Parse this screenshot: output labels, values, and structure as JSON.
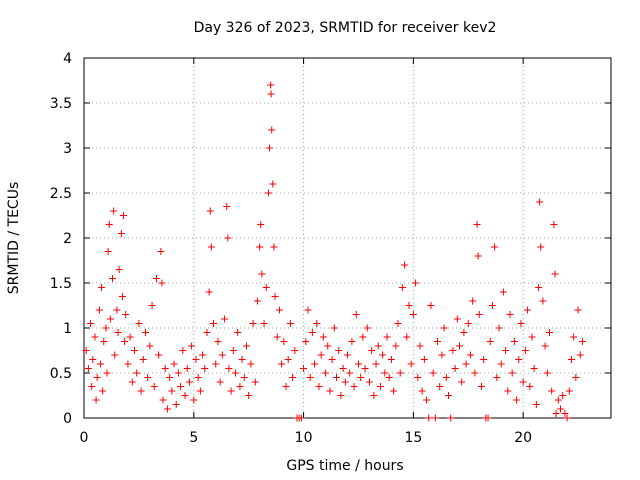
{
  "chart_data": {
    "type": "scatter",
    "title": "Day 326 of 2023, SRMTID for receiver kev2",
    "xlabel": "GPS time / hours",
    "ylabel": "SRMTID / TECUs",
    "xlim": [
      0,
      24
    ],
    "ylim": [
      0,
      4
    ],
    "x_ticks": [
      0,
      5,
      10,
      15,
      20
    ],
    "x_tick_labels": [
      "0",
      "5",
      "10",
      "15",
      "20"
    ],
    "y_ticks": [
      0,
      0.5,
      1,
      1.5,
      2,
      2.5,
      3,
      3.5,
      4
    ],
    "y_tick_labels": [
      "0",
      "0.5",
      "1",
      "1.5",
      "2",
      "2.5",
      "3",
      "3.5",
      "4"
    ],
    "grid": true,
    "marker": "+",
    "color": "#ff0000",
    "series": [
      {
        "name": "SRMTID",
        "points": [
          [
            0.1,
            0.75
          ],
          [
            0.2,
            0.55
          ],
          [
            0.3,
            1.05
          ],
          [
            0.35,
            0.35
          ],
          [
            0.4,
            0.65
          ],
          [
            0.5,
            0.9
          ],
          [
            0.55,
            0.2
          ],
          [
            0.6,
            0.45
          ],
          [
            0.7,
            1.2
          ],
          [
            0.75,
            0.6
          ],
          [
            0.8,
            1.45
          ],
          [
            0.85,
            0.3
          ],
          [
            0.9,
            0.85
          ],
          [
            1.0,
            1.0
          ],
          [
            1.05,
            0.5
          ],
          [
            1.1,
            1.85
          ],
          [
            1.15,
            2.15
          ],
          [
            1.2,
            1.1
          ],
          [
            1.3,
            1.55
          ],
          [
            1.35,
            2.3
          ],
          [
            1.4,
            0.7
          ],
          [
            1.5,
            1.2
          ],
          [
            1.55,
            0.95
          ],
          [
            1.6,
            1.65
          ],
          [
            1.7,
            2.05
          ],
          [
            1.75,
            1.35
          ],
          [
            1.8,
            2.25
          ],
          [
            1.85,
            0.85
          ],
          [
            1.9,
            1.15
          ],
          [
            2.0,
            0.6
          ],
          [
            2.1,
            0.9
          ],
          [
            2.2,
            0.4
          ],
          [
            2.3,
            0.75
          ],
          [
            2.4,
            0.5
          ],
          [
            2.5,
            1.05
          ],
          [
            2.6,
            0.3
          ],
          [
            2.7,
            0.65
          ],
          [
            2.8,
            0.95
          ],
          [
            2.9,
            0.45
          ],
          [
            3.0,
            0.8
          ],
          [
            3.1,
            1.25
          ],
          [
            3.2,
            0.35
          ],
          [
            3.3,
            1.55
          ],
          [
            3.4,
            0.7
          ],
          [
            3.5,
            1.85
          ],
          [
            3.55,
            1.5
          ],
          [
            3.6,
            0.2
          ],
          [
            3.7,
            0.55
          ],
          [
            3.8,
            0.1
          ],
          [
            3.9,
            0.45
          ],
          [
            4.0,
            0.3
          ],
          [
            4.1,
            0.6
          ],
          [
            4.2,
            0.15
          ],
          [
            4.3,
            0.5
          ],
          [
            4.4,
            0.35
          ],
          [
            4.5,
            0.75
          ],
          [
            4.6,
            0.25
          ],
          [
            4.7,
            0.55
          ],
          [
            4.8,
            0.4
          ],
          [
            4.9,
            0.8
          ],
          [
            5.0,
            0.2
          ],
          [
            5.1,
            0.65
          ],
          [
            5.2,
            0.45
          ],
          [
            5.3,
            0.3
          ],
          [
            5.4,
            0.7
          ],
          [
            5.5,
            0.55
          ],
          [
            5.6,
            0.95
          ],
          [
            5.7,
            1.4
          ],
          [
            5.75,
            2.3
          ],
          [
            5.8,
            1.9
          ],
          [
            5.9,
            1.05
          ],
          [
            6.0,
            0.6
          ],
          [
            6.1,
            0.85
          ],
          [
            6.2,
            0.4
          ],
          [
            6.3,
            0.7
          ],
          [
            6.4,
            1.1
          ],
          [
            6.5,
            2.35
          ],
          [
            6.55,
            2.0
          ],
          [
            6.6,
            0.55
          ],
          [
            6.7,
            0.3
          ],
          [
            6.8,
            0.75
          ],
          [
            6.9,
            0.5
          ],
          [
            7.0,
            0.95
          ],
          [
            7.1,
            0.35
          ],
          [
            7.2,
            0.65
          ],
          [
            7.3,
            0.45
          ],
          [
            7.4,
            0.8
          ],
          [
            7.5,
            0.25
          ],
          [
            7.6,
            0.6
          ],
          [
            7.7,
            1.05
          ],
          [
            7.8,
            0.4
          ],
          [
            7.9,
            1.3
          ],
          [
            8.0,
            1.9
          ],
          [
            8.05,
            2.15
          ],
          [
            8.1,
            1.6
          ],
          [
            8.2,
            1.05
          ],
          [
            8.3,
            1.45
          ],
          [
            8.4,
            2.5
          ],
          [
            8.45,
            3.0
          ],
          [
            8.5,
            3.7
          ],
          [
            8.52,
            3.6
          ],
          [
            8.55,
            3.2
          ],
          [
            8.6,
            2.6
          ],
          [
            8.65,
            1.9
          ],
          [
            8.7,
            1.35
          ],
          [
            8.8,
            0.9
          ],
          [
            8.9,
            1.2
          ],
          [
            9.0,
            0.6
          ],
          [
            9.1,
            0.85
          ],
          [
            9.2,
            0.35
          ],
          [
            9.3,
            0.65
          ],
          [
            9.4,
            1.05
          ],
          [
            9.5,
            0.45
          ],
          [
            9.6,
            0.75
          ],
          [
            9.7,
            0.0
          ],
          [
            9.8,
            0.0
          ],
          [
            9.9,
            0.0
          ],
          [
            10.0,
            0.55
          ],
          [
            10.1,
            0.85
          ],
          [
            10.2,
            1.2
          ],
          [
            10.3,
            0.45
          ],
          [
            10.4,
            0.95
          ],
          [
            10.5,
            0.6
          ],
          [
            10.6,
            1.05
          ],
          [
            10.7,
            0.35
          ],
          [
            10.8,
            0.7
          ],
          [
            10.9,
            0.9
          ],
          [
            11.0,
            0.5
          ],
          [
            11.1,
            0.8
          ],
          [
            11.2,
            0.3
          ],
          [
            11.3,
            0.65
          ],
          [
            11.4,
            1.0
          ],
          [
            11.5,
            0.45
          ],
          [
            11.6,
            0.75
          ],
          [
            11.7,
            0.25
          ],
          [
            11.8,
            0.55
          ],
          [
            11.9,
            0.4
          ],
          [
            12.0,
            0.7
          ],
          [
            12.1,
            0.5
          ],
          [
            12.2,
            0.85
          ],
          [
            12.3,
            0.35
          ],
          [
            12.4,
            1.15
          ],
          [
            12.5,
            0.6
          ],
          [
            12.6,
            0.45
          ],
          [
            12.7,
            0.9
          ],
          [
            12.8,
            0.55
          ],
          [
            12.9,
            1.0
          ],
          [
            13.0,
            0.4
          ],
          [
            13.1,
            0.75
          ],
          [
            13.2,
            0.25
          ],
          [
            13.3,
            0.6
          ],
          [
            13.4,
            0.8
          ],
          [
            13.5,
            0.35
          ],
          [
            13.6,
            0.7
          ],
          [
            13.7,
            0.5
          ],
          [
            13.8,
            0.9
          ],
          [
            13.9,
            0.45
          ],
          [
            14.0,
            0.65
          ],
          [
            14.1,
            0.3
          ],
          [
            14.2,
            0.8
          ],
          [
            14.3,
            1.05
          ],
          [
            14.4,
            0.5
          ],
          [
            14.5,
            1.45
          ],
          [
            14.6,
            1.7
          ],
          [
            14.7,
            0.9
          ],
          [
            14.8,
            1.25
          ],
          [
            14.9,
            0.6
          ],
          [
            15.0,
            1.15
          ],
          [
            15.1,
            1.5
          ],
          [
            15.2,
            0.45
          ],
          [
            15.3,
            0.8
          ],
          [
            15.4,
            0.3
          ],
          [
            15.5,
            0.65
          ],
          [
            15.6,
            0.2
          ],
          [
            15.7,
            0.0
          ],
          [
            15.8,
            1.25
          ],
          [
            15.9,
            0.5
          ],
          [
            16.0,
            0.0
          ],
          [
            16.1,
            0.85
          ],
          [
            16.2,
            0.35
          ],
          [
            16.3,
            0.7
          ],
          [
            16.4,
            1.0
          ],
          [
            16.5,
            0.45
          ],
          [
            16.6,
            0.25
          ],
          [
            16.7,
            0.0
          ],
          [
            16.8,
            0.75
          ],
          [
            16.9,
            0.55
          ],
          [
            17.0,
            1.1
          ],
          [
            17.1,
            0.8
          ],
          [
            17.2,
            0.4
          ],
          [
            17.3,
            0.95
          ],
          [
            17.4,
            0.6
          ],
          [
            17.5,
            1.05
          ],
          [
            17.6,
            0.7
          ],
          [
            17.7,
            1.3
          ],
          [
            17.8,
            0.5
          ],
          [
            17.9,
            2.15
          ],
          [
            17.95,
            1.8
          ],
          [
            18.0,
            1.15
          ],
          [
            18.1,
            0.35
          ],
          [
            18.2,
            0.65
          ],
          [
            18.3,
            0.0
          ],
          [
            18.4,
            0.0
          ],
          [
            18.5,
            0.85
          ],
          [
            18.6,
            1.25
          ],
          [
            18.7,
            1.9
          ],
          [
            18.8,
            0.45
          ],
          [
            18.9,
            1.0
          ],
          [
            19.0,
            0.6
          ],
          [
            19.1,
            1.4
          ],
          [
            19.2,
            0.75
          ],
          [
            19.3,
            0.3
          ],
          [
            19.4,
            1.15
          ],
          [
            19.5,
            0.5
          ],
          [
            19.6,
            0.85
          ],
          [
            19.7,
            0.2
          ],
          [
            19.8,
            0.65
          ],
          [
            19.9,
            1.05
          ],
          [
            20.0,
            0.4
          ],
          [
            20.1,
            0.75
          ],
          [
            20.2,
            1.2
          ],
          [
            20.3,
            0.35
          ],
          [
            20.4,
            0.9
          ],
          [
            20.5,
            0.55
          ],
          [
            20.6,
            0.15
          ],
          [
            20.7,
            1.45
          ],
          [
            20.75,
            2.4
          ],
          [
            20.8,
            1.9
          ],
          [
            20.9,
            1.3
          ],
          [
            21.0,
            0.8
          ],
          [
            21.1,
            0.5
          ],
          [
            21.2,
            0.95
          ],
          [
            21.3,
            0.3
          ],
          [
            21.4,
            2.15
          ],
          [
            21.45,
            1.6
          ],
          [
            21.5,
            0.05
          ],
          [
            21.6,
            0.2
          ],
          [
            21.7,
            0.1
          ],
          [
            21.8,
            0.25
          ],
          [
            21.9,
            0.05
          ],
          [
            22.0,
            0.0
          ],
          [
            22.1,
            0.3
          ],
          [
            22.2,
            0.65
          ],
          [
            22.3,
            0.9
          ],
          [
            22.4,
            0.45
          ],
          [
            22.5,
            1.2
          ],
          [
            22.6,
            0.7
          ],
          [
            22.7,
            0.85
          ]
        ]
      }
    ]
  }
}
